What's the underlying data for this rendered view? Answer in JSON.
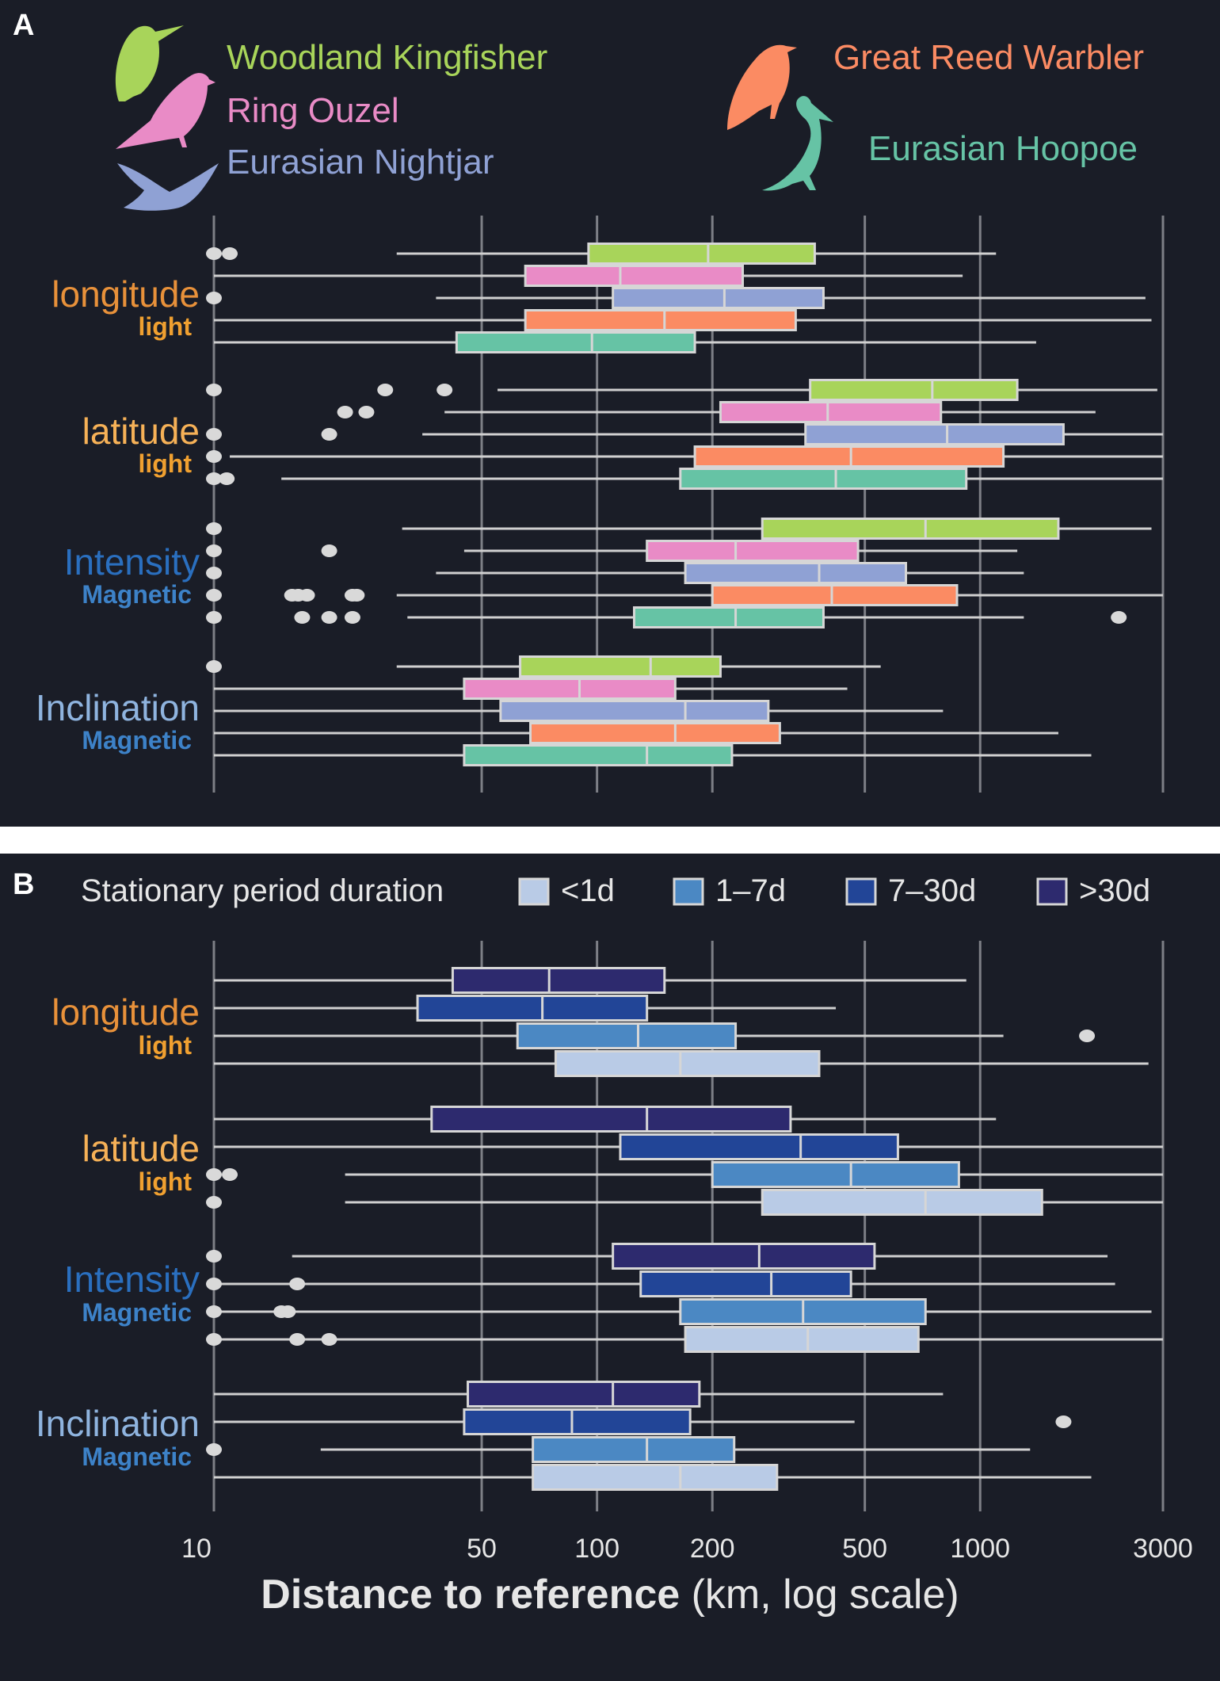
{
  "panels": [
    {
      "id": "A",
      "letter": "A",
      "legend": [
        {
          "name": "Woodland Kingfisher",
          "color": "#a8d45a"
        },
        {
          "name": "Ring Ouzel",
          "color": "#e98bc6"
        },
        {
          "name": "Eurasian Nightjar",
          "color": "#8fa1d4"
        },
        {
          "name": "Great Reed Warbler",
          "color": "#fb8b63"
        },
        {
          "name": "Eurasian Hoopoe",
          "color": "#66c3a5"
        }
      ]
    },
    {
      "id": "B",
      "letter": "B",
      "legend_title": "Stationary period duration",
      "legend": [
        {
          "name": "<1d",
          "color": "#b9cbe6"
        },
        {
          "name": "1–7d",
          "color": "#4b88c3"
        },
        {
          "name": "7–30d",
          "color": "#224597"
        },
        {
          "name": ">30d",
          "color": "#2d2a6e"
        }
      ]
    }
  ],
  "chart_data": [
    {
      "type": "boxplot",
      "panel": "A",
      "orientation": "horizontal",
      "x_scale": "log",
      "xlim": [
        10,
        3000
      ],
      "x_ticks": [
        10,
        50,
        100,
        200,
        500,
        1000,
        3000
      ],
      "xlabel_bold": "Distance to reference",
      "xlabel_rest": " (km, log scale)",
      "groups": [
        {
          "label": "longitude",
          "sublabel": "light",
          "label_color": "#e8913a",
          "sublabel_color": "#f0a030",
          "boxes": [
            {
              "series": "Woodland Kingfisher",
              "color": "#a8d45a",
              "whisker_low": 30,
              "q1": 95,
              "median": 195,
              "q3": 370,
              "whisker_high": 1100,
              "outliers": [
                10,
                11
              ]
            },
            {
              "series": "Ring Ouzel",
              "color": "#e98bc6",
              "whisker_low": 10,
              "q1": 65,
              "median": 115,
              "q3": 240,
              "whisker_high": 900,
              "outliers": []
            },
            {
              "series": "Eurasian Nightjar",
              "color": "#8fa1d4",
              "whisker_low": 38,
              "q1": 110,
              "median": 215,
              "q3": 390,
              "whisker_high": 2700,
              "outliers": [
                10
              ]
            },
            {
              "series": "Great Reed Warbler",
              "color": "#fb8b63",
              "whisker_low": 10,
              "q1": 65,
              "median": 150,
              "q3": 330,
              "whisker_high": 2800,
              "outliers": []
            },
            {
              "series": "Eurasian Hoopoe",
              "color": "#66c3a5",
              "whisker_low": 10,
              "q1": 43,
              "median": 97,
              "q3": 180,
              "whisker_high": 1400,
              "outliers": []
            }
          ]
        },
        {
          "label": "latitude",
          "sublabel": "light",
          "label_color": "#f6b157",
          "sublabel_color": "#f0a030",
          "boxes": [
            {
              "series": "Woodland Kingfisher",
              "color": "#a8d45a",
              "whisker_low": 55,
              "q1": 360,
              "median": 750,
              "q3": 1250,
              "whisker_high": 2900,
              "outliers": [
                10,
                28,
                40
              ]
            },
            {
              "series": "Ring Ouzel",
              "color": "#e98bc6",
              "whisker_low": 40,
              "q1": 210,
              "median": 400,
              "q3": 790,
              "whisker_high": 2000,
              "outliers": [
                22,
                25
              ]
            },
            {
              "series": "Eurasian Nightjar",
              "color": "#8fa1d4",
              "whisker_low": 35,
              "q1": 350,
              "median": 820,
              "q3": 1650,
              "whisker_high": 3000,
              "outliers": [
                10,
                20
              ]
            },
            {
              "series": "Great Reed Warbler",
              "color": "#fb8b63",
              "whisker_low": 11,
              "q1": 180,
              "median": 460,
              "q3": 1150,
              "whisker_high": 3000,
              "outliers": [
                10
              ]
            },
            {
              "series": "Eurasian Hoopoe",
              "color": "#66c3a5",
              "whisker_low": 15,
              "q1": 165,
              "median": 420,
              "q3": 920,
              "whisker_high": 3000,
              "outliers": [
                10,
                10.8
              ]
            }
          ]
        },
        {
          "label": "Intensity",
          "sublabel": "Magnetic",
          "label_color": "#2a6fbf",
          "sublabel_color": "#3d82c8",
          "boxes": [
            {
              "series": "Woodland Kingfisher",
              "color": "#a8d45a",
              "whisker_low": 31,
              "q1": 270,
              "median": 720,
              "q3": 1600,
              "whisker_high": 2800,
              "outliers": [
                10
              ]
            },
            {
              "series": "Ring Ouzel",
              "color": "#e98bc6",
              "whisker_low": 45,
              "q1": 135,
              "median": 230,
              "q3": 480,
              "whisker_high": 1250,
              "outliers": [
                10,
                20
              ]
            },
            {
              "series": "Eurasian Nightjar",
              "color": "#8fa1d4",
              "whisker_low": 38,
              "q1": 170,
              "median": 380,
              "q3": 640,
              "whisker_high": 1300,
              "outliers": [
                10
              ]
            },
            {
              "series": "Great Reed Warbler",
              "color": "#fb8b63",
              "whisker_low": 30,
              "q1": 200,
              "median": 410,
              "q3": 870,
              "whisker_high": 3000,
              "outliers": [
                10,
                16,
                16.6,
                17.5,
                23,
                23.6
              ]
            },
            {
              "series": "Eurasian Hoopoe",
              "color": "#66c3a5",
              "whisker_low": 32,
              "q1": 125,
              "median": 230,
              "q3": 390,
              "whisker_high": 1300,
              "outliers": [
                10,
                17,
                20,
                23,
                2300
              ]
            }
          ]
        },
        {
          "label": "Inclination",
          "sublabel": "Magnetic",
          "label_color": "#8fb4df",
          "sublabel_color": "#3d82c8",
          "boxes": [
            {
              "series": "Woodland Kingfisher",
              "color": "#a8d45a",
              "whisker_low": 30,
              "q1": 63,
              "median": 138,
              "q3": 210,
              "whisker_high": 550,
              "outliers": [
                10
              ]
            },
            {
              "series": "Ring Ouzel",
              "color": "#e98bc6",
              "whisker_low": 10,
              "q1": 45,
              "median": 90,
              "q3": 160,
              "whisker_high": 450,
              "outliers": []
            },
            {
              "series": "Eurasian Nightjar",
              "color": "#8fa1d4",
              "whisker_low": 10,
              "q1": 56,
              "median": 170,
              "q3": 280,
              "whisker_high": 800,
              "outliers": []
            },
            {
              "series": "Great Reed Warbler",
              "color": "#fb8b63",
              "whisker_low": 10,
              "q1": 67,
              "median": 160,
              "q3": 300,
              "whisker_high": 1600,
              "outliers": []
            },
            {
              "series": "Eurasian Hoopoe",
              "color": "#66c3a5",
              "whisker_low": 10,
              "q1": 45,
              "median": 135,
              "q3": 225,
              "whisker_high": 1950,
              "outliers": []
            }
          ]
        }
      ]
    },
    {
      "type": "boxplot",
      "panel": "B",
      "orientation": "horizontal",
      "x_scale": "log",
      "xlim": [
        10,
        3000
      ],
      "x_ticks": [
        10,
        50,
        100,
        200,
        500,
        1000,
        3000
      ],
      "xlabel_bold": "Distance to reference",
      "xlabel_rest": " (km, log scale)",
      "groups": [
        {
          "label": "longitude",
          "sublabel": "light",
          "label_color": "#e8913a",
          "sublabel_color": "#f0a030",
          "boxes": [
            {
              "series": ">30d",
              "color": "#2d2a6e",
              "whisker_low": 10,
              "q1": 42,
              "median": 75,
              "q3": 150,
              "whisker_high": 920,
              "outliers": []
            },
            {
              "series": "7–30d",
              "color": "#224597",
              "whisker_low": 10,
              "q1": 34,
              "median": 72,
              "q3": 135,
              "whisker_high": 420,
              "outliers": []
            },
            {
              "series": "1–7d",
              "color": "#4b88c3",
              "whisker_low": 10,
              "q1": 62,
              "median": 128,
              "q3": 230,
              "whisker_high": 1150,
              "outliers": [
                1900
              ]
            },
            {
              "series": "<1d",
              "color": "#b9cbe6",
              "whisker_low": 10,
              "q1": 78,
              "median": 165,
              "q3": 380,
              "whisker_high": 2750,
              "outliers": []
            }
          ]
        },
        {
          "label": "latitude",
          "sublabel": "light",
          "label_color": "#f6b157",
          "sublabel_color": "#f0a030",
          "boxes": [
            {
              "series": ">30d",
              "color": "#2d2a6e",
              "whisker_low": 10,
              "q1": 37,
              "median": 135,
              "q3": 320,
              "whisker_high": 1100,
              "outliers": []
            },
            {
              "series": "7–30d",
              "color": "#224597",
              "whisker_low": 10,
              "q1": 115,
              "median": 340,
              "q3": 610,
              "whisker_high": 3000,
              "outliers": []
            },
            {
              "series": "1–7d",
              "color": "#4b88c3",
              "whisker_low": 22,
              "q1": 200,
              "median": 460,
              "q3": 880,
              "whisker_high": 3000,
              "outliers": [
                10,
                11
              ]
            },
            {
              "series": "<1d",
              "color": "#b9cbe6",
              "whisker_low": 22,
              "q1": 270,
              "median": 720,
              "q3": 1450,
              "whisker_high": 3000,
              "outliers": [
                10
              ]
            }
          ]
        },
        {
          "label": "Intensity",
          "sublabel": "Magnetic",
          "label_color": "#2a6fbf",
          "sublabel_color": "#3d82c8",
          "boxes": [
            {
              "series": ">30d",
              "color": "#2d2a6e",
              "whisker_low": 16,
              "q1": 110,
              "median": 265,
              "q3": 530,
              "whisker_high": 2150,
              "outliers": [
                10
              ]
            },
            {
              "series": "7–30d",
              "color": "#224597",
              "whisker_low": 10,
              "q1": 130,
              "median": 285,
              "q3": 460,
              "whisker_high": 2250,
              "outliers": [
                10,
                16.5
              ]
            },
            {
              "series": "1–7d",
              "color": "#4b88c3",
              "whisker_low": 10,
              "q1": 165,
              "median": 345,
              "q3": 720,
              "whisker_high": 2800,
              "outliers": [
                10,
                15,
                15.6
              ]
            },
            {
              "series": "<1d",
              "color": "#b9cbe6",
              "whisker_low": 10,
              "q1": 170,
              "median": 355,
              "q3": 690,
              "whisker_high": 3000,
              "outliers": [
                10,
                16.5,
                20
              ]
            }
          ]
        },
        {
          "label": "Inclination",
          "sublabel": "Magnetic",
          "label_color": "#8fb4df",
          "sublabel_color": "#3d82c8",
          "boxes": [
            {
              "series": ">30d",
              "color": "#2d2a6e",
              "whisker_low": 10,
              "q1": 46,
              "median": 110,
              "q3": 185,
              "whisker_high": 800,
              "outliers": []
            },
            {
              "series": "7–30d",
              "color": "#224597",
              "whisker_low": 10,
              "q1": 45,
              "median": 86,
              "q3": 175,
              "whisker_high": 470,
              "outliers": [
                1650
              ]
            },
            {
              "series": "1–7d",
              "color": "#4b88c3",
              "whisker_low": 19,
              "q1": 68,
              "median": 135,
              "q3": 228,
              "whisker_high": 1350,
              "outliers": [
                10
              ]
            },
            {
              "series": "<1d",
              "color": "#b9cbe6",
              "whisker_low": 10,
              "q1": 68,
              "median": 165,
              "q3": 295,
              "whisker_high": 1950,
              "outliers": []
            }
          ]
        }
      ]
    }
  ]
}
